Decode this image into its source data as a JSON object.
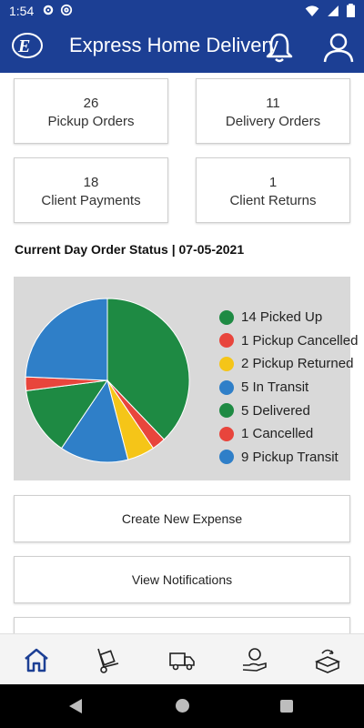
{
  "status_bar": {
    "time": "1:54",
    "icons": [
      "gear-icon",
      "at-icon",
      "wifi-icon",
      "signal-icon",
      "battery-icon"
    ]
  },
  "header": {
    "title": "Express Home Delivery",
    "icons": [
      "logo-icon",
      "bell-icon",
      "user-icon"
    ]
  },
  "summary_cards": [
    {
      "count": "26",
      "label": "Pickup Orders"
    },
    {
      "count": "11",
      "label": "Delivery Orders"
    },
    {
      "count": "18",
      "label": "Client Payments"
    },
    {
      "count": "1",
      "label": "Client Returns"
    }
  ],
  "section": {
    "title": "Current Day Order Status | 07-05-2021"
  },
  "chart_data": {
    "type": "pie",
    "slices": [
      {
        "label": "14 Picked Up",
        "value": 14,
        "color": "#1e8a43"
      },
      {
        "label": "1 Pickup Cancelled",
        "value": 1,
        "color": "#e8453c"
      },
      {
        "label": "2 Pickup Returned",
        "value": 2,
        "color": "#f5c518"
      },
      {
        "label": "5 In Transit",
        "value": 5,
        "color": "#2f7fc8"
      },
      {
        "label": "5 Delivered",
        "value": 5,
        "color": "#1e8a43"
      },
      {
        "label": "1 Cancelled",
        "value": 1,
        "color": "#e8453c"
      },
      {
        "label": "9 Pickup Transit",
        "value": 9,
        "color": "#2f7fc8"
      }
    ],
    "legend_position": "right"
  },
  "actions": {
    "create_expense": "Create New Expense",
    "view_notifications": "View Notifications"
  },
  "bottom_nav": [
    "home-icon",
    "hand-truck-icon",
    "delivery-truck-icon",
    "payment-icon",
    "returns-icon"
  ],
  "colors": {
    "primary": "#1c3f94",
    "chart_bg": "#d9d9d9"
  }
}
